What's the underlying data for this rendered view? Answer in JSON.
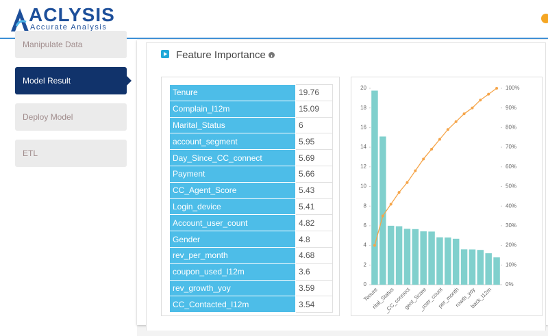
{
  "header": {
    "logo": "ACLYSIS",
    "tagline": "Accurate Analysis"
  },
  "sidebar": {
    "items": [
      "Manipulate Data",
      "Model Result",
      "Deploy Model",
      "ETL"
    ],
    "active": 1
  },
  "panel": {
    "title": "Feature Importance"
  },
  "table": {
    "rows": [
      [
        "Tenure",
        19.76
      ],
      [
        "Complain_l12m",
        15.09
      ],
      [
        "Marital_Status",
        6
      ],
      [
        "account_segment",
        5.95
      ],
      [
        "Day_Since_CC_connect",
        5.69
      ],
      [
        "Payment",
        5.66
      ],
      [
        "CC_Agent_Score",
        5.43
      ],
      [
        "Login_device",
        5.41
      ],
      [
        "Account_user_count",
        4.82
      ],
      [
        "Gender",
        4.8
      ],
      [
        "rev_per_month",
        4.68
      ],
      [
        "coupon_used_l12m",
        3.6
      ],
      [
        "rev_growth_yoy",
        3.59
      ],
      [
        "CC_Contacted_l12m",
        3.54
      ]
    ]
  },
  "chart_data": {
    "type": "pareto",
    "categories": [
      "Tenure",
      null,
      "rital_Status",
      null,
      "_CC_connect",
      null,
      "gent_Score",
      null,
      "_user_count",
      null,
      "per_month",
      null,
      "rowth_yoy",
      null,
      "back_l12m",
      null
    ],
    "series": [
      {
        "color": "#80d0cd",
        "values": [
          19.76,
          15.09,
          6,
          5.95,
          5.69,
          5.66,
          5.43,
          5.41,
          4.82,
          4.8,
          4.68,
          3.6,
          3.59,
          3.54,
          3.2,
          2.78
        ]
      },
      {
        "color": "#f5a54a",
        "axis": "y2",
        "values": [
          20,
          35,
          41,
          47,
          52,
          58,
          64,
          69,
          74,
          79,
          83,
          87,
          90,
          94,
          97,
          100
        ]
      }
    ],
    "ylim": [
      0,
      20
    ],
    "yticks": [
      0,
      2,
      4,
      6,
      8,
      10,
      12,
      14,
      16,
      18,
      20
    ],
    "y2lim": [
      0,
      100
    ],
    "y2ticks": [
      {
        "value": 0,
        "label": "0%"
      },
      {
        "value": 10,
        "label": "10%"
      },
      {
        "value": 20,
        "label": "20%"
      },
      {
        "value": 30,
        "label": "30%"
      },
      {
        "value": 40,
        "label": "40%"
      },
      {
        "value": 50,
        "label": "50%"
      },
      {
        "value": 60,
        "label": "60%"
      },
      {
        "value": 70,
        "label": "70%"
      },
      {
        "value": 80,
        "label": "80%"
      },
      {
        "value": 90,
        "label": "90%"
      },
      {
        "value": 100,
        "label": "100%"
      }
    ]
  }
}
